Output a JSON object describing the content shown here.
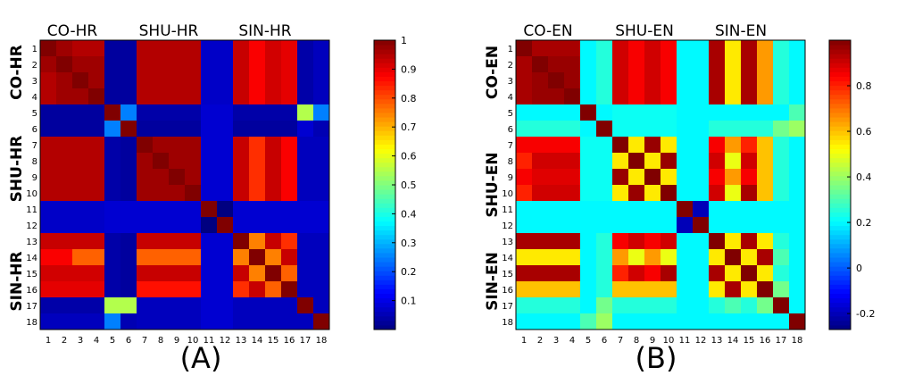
{
  "chart_data": [
    {
      "type": "heatmap",
      "panel_label": "(A)",
      "row_labels": [
        "1",
        "2",
        "3",
        "4",
        "5",
        "6",
        "7",
        "8",
        "9",
        "10",
        "11",
        "12",
        "13",
        "14",
        "15",
        "16",
        "17",
        "18"
      ],
      "col_labels": [
        "1",
        "2",
        "3",
        "4",
        "5",
        "6",
        "7",
        "8",
        "9",
        "10",
        "11",
        "12",
        "13",
        "14",
        "15",
        "16",
        "17",
        "18"
      ],
      "top_groups": [
        {
          "label": "CO-HR",
          "from": 1,
          "to": 4
        },
        {
          "label": "SHU-HR",
          "from": 7,
          "to": 10
        },
        {
          "label": "SIN-HR",
          "from": 13,
          "to": 16
        }
      ],
      "side_groups": [
        {
          "label": "CO-HR",
          "from": 1,
          "to": 4
        },
        {
          "label": "SHU-HR",
          "from": 7,
          "to": 10
        },
        {
          "label": "SIN-HR",
          "from": 13,
          "to": 18
        }
      ],
      "colorbar": {
        "min": 0.0,
        "max": 1.0,
        "ticks": [
          "0.1",
          "0.2",
          "0.3",
          "0.4",
          "0.5",
          "0.6",
          "0.7",
          "0.8",
          "0.9",
          "1"
        ]
      },
      "values": [
        [
          1.0,
          0.97,
          0.95,
          0.95,
          0.03,
          0.03,
          0.95,
          0.95,
          0.95,
          0.95,
          0.07,
          0.07,
          0.93,
          0.88,
          0.92,
          0.9,
          0.04,
          0.06
        ],
        [
          0.97,
          1.0,
          0.97,
          0.97,
          0.03,
          0.03,
          0.95,
          0.95,
          0.95,
          0.95,
          0.07,
          0.07,
          0.93,
          0.88,
          0.92,
          0.9,
          0.04,
          0.06
        ],
        [
          0.95,
          0.97,
          1.0,
          0.97,
          0.03,
          0.03,
          0.95,
          0.95,
          0.95,
          0.95,
          0.07,
          0.07,
          0.93,
          0.88,
          0.92,
          0.9,
          0.04,
          0.06
        ],
        [
          0.95,
          0.97,
          0.97,
          1.0,
          0.03,
          0.03,
          0.95,
          0.95,
          0.95,
          0.95,
          0.07,
          0.07,
          0.93,
          0.88,
          0.92,
          0.9,
          0.04,
          0.06
        ],
        [
          0.03,
          0.03,
          0.03,
          0.03,
          1.0,
          0.25,
          0.04,
          0.04,
          0.04,
          0.04,
          0.08,
          0.08,
          0.04,
          0.04,
          0.04,
          0.04,
          0.55,
          0.25
        ],
        [
          0.03,
          0.03,
          0.03,
          0.03,
          0.25,
          1.0,
          0.03,
          0.03,
          0.03,
          0.03,
          0.08,
          0.08,
          0.03,
          0.03,
          0.03,
          0.03,
          0.08,
          0.05
        ],
        [
          0.95,
          0.95,
          0.95,
          0.95,
          0.04,
          0.03,
          1.0,
          0.97,
          0.97,
          0.97,
          0.08,
          0.08,
          0.93,
          0.83,
          0.93,
          0.88,
          0.06,
          0.06
        ],
        [
          0.95,
          0.95,
          0.95,
          0.95,
          0.04,
          0.03,
          0.97,
          1.0,
          0.97,
          0.97,
          0.08,
          0.08,
          0.93,
          0.83,
          0.93,
          0.88,
          0.06,
          0.06
        ],
        [
          0.95,
          0.95,
          0.95,
          0.95,
          0.04,
          0.03,
          0.97,
          0.97,
          1.0,
          0.97,
          0.08,
          0.08,
          0.93,
          0.83,
          0.93,
          0.88,
          0.06,
          0.06
        ],
        [
          0.95,
          0.95,
          0.95,
          0.95,
          0.04,
          0.03,
          0.97,
          0.97,
          0.97,
          1.0,
          0.08,
          0.08,
          0.93,
          0.83,
          0.93,
          0.88,
          0.06,
          0.06
        ],
        [
          0.07,
          0.07,
          0.07,
          0.07,
          0.08,
          0.08,
          0.08,
          0.08,
          0.08,
          0.08,
          1.0,
          0.0,
          0.08,
          0.08,
          0.08,
          0.08,
          0.08,
          0.08
        ],
        [
          0.07,
          0.07,
          0.07,
          0.07,
          0.08,
          0.08,
          0.08,
          0.08,
          0.08,
          0.08,
          0.0,
          1.0,
          0.08,
          0.08,
          0.08,
          0.08,
          0.08,
          0.08
        ],
        [
          0.93,
          0.93,
          0.93,
          0.93,
          0.04,
          0.03,
          0.93,
          0.93,
          0.93,
          0.93,
          0.08,
          0.08,
          1.0,
          0.75,
          0.93,
          0.83,
          0.06,
          0.06
        ],
        [
          0.88,
          0.88,
          0.78,
          0.78,
          0.04,
          0.03,
          0.78,
          0.78,
          0.78,
          0.78,
          0.08,
          0.08,
          0.75,
          1.0,
          0.75,
          0.93,
          0.06,
          0.06
        ],
        [
          0.92,
          0.92,
          0.92,
          0.92,
          0.04,
          0.03,
          0.93,
          0.93,
          0.93,
          0.93,
          0.08,
          0.08,
          0.93,
          0.75,
          1.0,
          0.78,
          0.06,
          0.06
        ],
        [
          0.9,
          0.9,
          0.9,
          0.9,
          0.04,
          0.03,
          0.86,
          0.86,
          0.86,
          0.86,
          0.08,
          0.08,
          0.83,
          0.93,
          0.78,
          1.0,
          0.06,
          0.06
        ],
        [
          0.04,
          0.04,
          0.04,
          0.04,
          0.55,
          0.55,
          0.06,
          0.06,
          0.06,
          0.06,
          0.08,
          0.08,
          0.06,
          0.06,
          0.06,
          0.06,
          1.0,
          0.06
        ],
        [
          0.06,
          0.06,
          0.06,
          0.06,
          0.25,
          0.05,
          0.06,
          0.06,
          0.06,
          0.06,
          0.08,
          0.08,
          0.06,
          0.06,
          0.06,
          0.06,
          0.06,
          1.0
        ]
      ]
    },
    {
      "type": "heatmap",
      "panel_label": "(B)",
      "row_labels": [
        "1",
        "2",
        "3",
        "4",
        "5",
        "6",
        "7",
        "8",
        "9",
        "10",
        "11",
        "12",
        "13",
        "14",
        "15",
        "16",
        "17",
        "18"
      ],
      "col_labels": [
        "1",
        "2",
        "3",
        "4",
        "5",
        "6",
        "7",
        "8",
        "9",
        "10",
        "11",
        "12",
        "13",
        "14",
        "15",
        "16",
        "17",
        "18"
      ],
      "top_groups": [
        {
          "label": "CO-EN",
          "from": 1,
          "to": 4
        },
        {
          "label": "SHU-EN",
          "from": 7,
          "to": 10
        },
        {
          "label": "SIN-EN",
          "from": 13,
          "to": 16
        }
      ],
      "side_groups": [
        {
          "label": "CO-EN",
          "from": 1,
          "to": 4
        },
        {
          "label": "SHU-EN",
          "from": 7,
          "to": 12
        },
        {
          "label": "SIN-EN",
          "from": 13,
          "to": 18
        }
      ],
      "colorbar": {
        "min": -0.27,
        "max": 1.0,
        "ticks": [
          "-0.2",
          "0",
          "0.2",
          "0.4",
          "0.6",
          "0.8"
        ]
      },
      "values": [
        [
          1.0,
          0.95,
          0.95,
          0.95,
          0.2,
          0.25,
          0.9,
          0.85,
          0.9,
          0.85,
          0.2,
          0.2,
          0.95,
          0.55,
          0.95,
          0.65,
          0.25,
          0.2
        ],
        [
          0.95,
          1.0,
          0.97,
          0.97,
          0.2,
          0.25,
          0.9,
          0.85,
          0.9,
          0.85,
          0.2,
          0.2,
          0.95,
          0.55,
          0.95,
          0.65,
          0.25,
          0.2
        ],
        [
          0.95,
          0.97,
          1.0,
          0.97,
          0.2,
          0.25,
          0.9,
          0.85,
          0.9,
          0.85,
          0.2,
          0.2,
          0.95,
          0.55,
          0.95,
          0.65,
          0.25,
          0.2
        ],
        [
          0.95,
          0.97,
          0.97,
          1.0,
          0.2,
          0.25,
          0.9,
          0.85,
          0.9,
          0.85,
          0.2,
          0.2,
          0.95,
          0.55,
          0.95,
          0.65,
          0.25,
          0.2
        ],
        [
          0.2,
          0.2,
          0.2,
          0.2,
          1.0,
          0.2,
          0.22,
          0.22,
          0.22,
          0.22,
          0.2,
          0.2,
          0.2,
          0.2,
          0.2,
          0.2,
          0.2,
          0.3
        ],
        [
          0.25,
          0.25,
          0.25,
          0.25,
          0.2,
          1.0,
          0.22,
          0.22,
          0.22,
          0.22,
          0.2,
          0.2,
          0.25,
          0.25,
          0.25,
          0.25,
          0.35,
          0.4
        ],
        [
          0.85,
          0.85,
          0.85,
          0.85,
          0.22,
          0.22,
          1.0,
          0.55,
          0.97,
          0.55,
          0.2,
          0.2,
          0.85,
          0.65,
          0.8,
          0.6,
          0.25,
          0.2
        ],
        [
          0.8,
          0.9,
          0.9,
          0.9,
          0.22,
          0.22,
          0.55,
          1.0,
          0.55,
          0.97,
          0.2,
          0.2,
          0.9,
          0.5,
          0.9,
          0.6,
          0.25,
          0.2
        ],
        [
          0.85,
          0.88,
          0.88,
          0.88,
          0.22,
          0.22,
          0.97,
          0.55,
          1.0,
          0.55,
          0.2,
          0.2,
          0.85,
          0.65,
          0.85,
          0.6,
          0.25,
          0.2
        ],
        [
          0.8,
          0.9,
          0.9,
          0.9,
          0.22,
          0.22,
          0.55,
          0.97,
          0.55,
          1.0,
          0.2,
          0.2,
          0.9,
          0.5,
          0.95,
          0.6,
          0.25,
          0.2
        ],
        [
          0.2,
          0.2,
          0.2,
          0.2,
          0.2,
          0.2,
          0.2,
          0.2,
          0.2,
          0.2,
          1.0,
          -0.2,
          0.2,
          0.2,
          0.2,
          0.2,
          0.2,
          0.2
        ],
        [
          0.2,
          0.2,
          0.2,
          0.2,
          0.2,
          0.2,
          0.2,
          0.2,
          0.2,
          0.2,
          -0.2,
          1.0,
          0.2,
          0.2,
          0.2,
          0.2,
          0.2,
          0.2
        ],
        [
          0.95,
          0.95,
          0.95,
          0.95,
          0.2,
          0.25,
          0.85,
          0.9,
          0.85,
          0.9,
          0.2,
          0.2,
          1.0,
          0.55,
          0.95,
          0.55,
          0.25,
          0.2
        ],
        [
          0.55,
          0.55,
          0.55,
          0.55,
          0.2,
          0.25,
          0.65,
          0.5,
          0.65,
          0.5,
          0.2,
          0.2,
          0.55,
          1.0,
          0.55,
          0.95,
          0.3,
          0.2
        ],
        [
          0.95,
          0.95,
          0.95,
          0.95,
          0.2,
          0.25,
          0.8,
          0.9,
          0.85,
          0.95,
          0.2,
          0.2,
          0.95,
          0.55,
          1.0,
          0.55,
          0.25,
          0.2
        ],
        [
          0.6,
          0.6,
          0.6,
          0.6,
          0.2,
          0.25,
          0.6,
          0.6,
          0.6,
          0.6,
          0.2,
          0.2,
          0.55,
          0.95,
          0.55,
          1.0,
          0.35,
          0.2
        ],
        [
          0.25,
          0.25,
          0.25,
          0.25,
          0.2,
          0.35,
          0.25,
          0.25,
          0.25,
          0.25,
          0.2,
          0.2,
          0.25,
          0.3,
          0.25,
          0.35,
          1.0,
          0.2
        ],
        [
          0.2,
          0.2,
          0.2,
          0.2,
          0.3,
          0.4,
          0.2,
          0.2,
          0.2,
          0.2,
          0.2,
          0.2,
          0.2,
          0.2,
          0.2,
          0.2,
          0.2,
          1.0
        ]
      ]
    }
  ]
}
